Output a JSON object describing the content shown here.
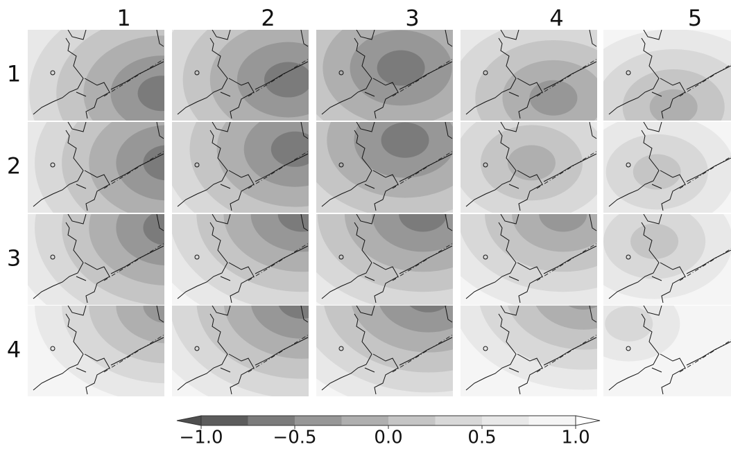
{
  "columns": [
    "1",
    "2",
    "3",
    "4",
    "5"
  ],
  "rows": [
    "1",
    "2",
    "3",
    "4"
  ],
  "colorbar": {
    "ticks": [
      {
        "value": -1,
        "label": "−1.0"
      },
      {
        "value": -0.5,
        "label": "−0.5"
      },
      {
        "value": 0,
        "label": "0.0"
      },
      {
        "value": 0.5,
        "label": "0.5"
      },
      {
        "value": 1,
        "label": "1.0"
      }
    ],
    "colors": [
      "#4f4f4f",
      "#5c5c5c",
      "#7b7b7b",
      "#979797",
      "#afafaf",
      "#c5c5c5",
      "#d8d8d8",
      "#e8e8e8",
      "#f5f5f5",
      "#ffffff"
    ]
  }
}
